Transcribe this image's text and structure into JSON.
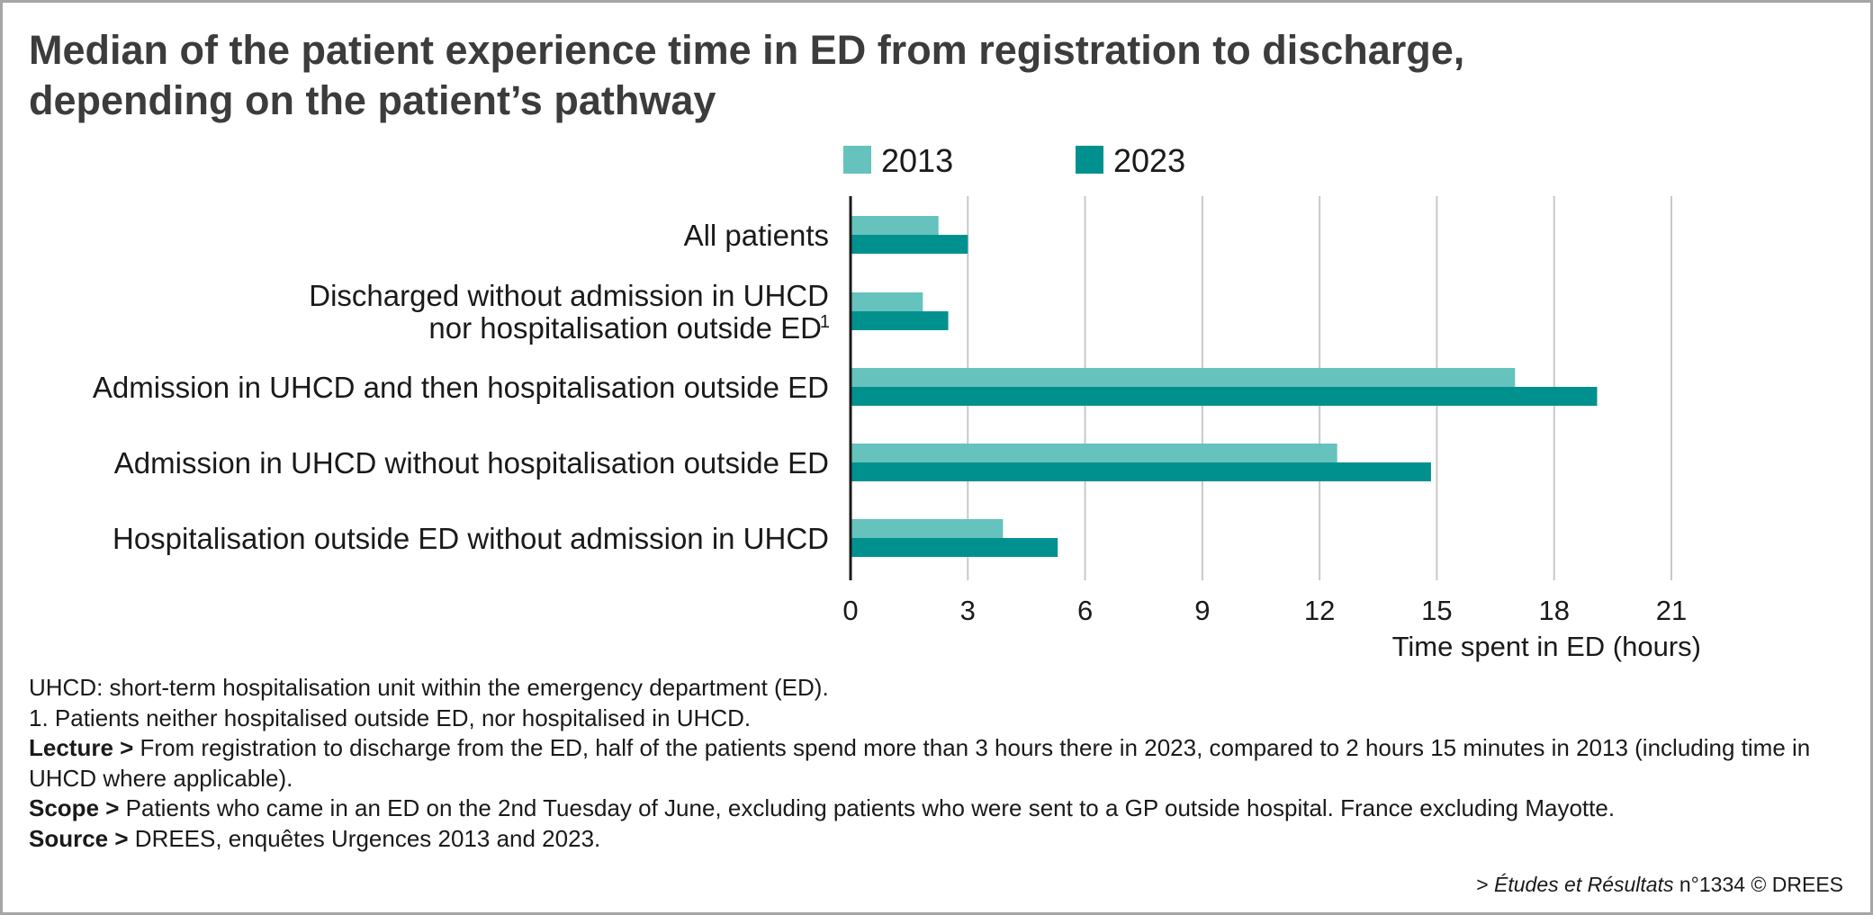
{
  "chart_data": {
    "type": "bar",
    "orientation": "horizontal",
    "title_lines": [
      "Median of the patient experience time in ED from registration to discharge,",
      "depending on the patient’s pathway"
    ],
    "categories": [
      {
        "lines": [
          "All patients"
        ]
      },
      {
        "lines": [
          "Discharged without admission in UHCD",
          "nor hospitalisation outside ED"
        ],
        "sup": "1"
      },
      {
        "lines": [
          "Admission in UHCD and then hospitalisation outside ED"
        ]
      },
      {
        "lines": [
          "Admission in UHCD without hospitalisation outside ED"
        ]
      },
      {
        "lines": [
          "Hospitalisation outside ED without admission in UHCD"
        ]
      }
    ],
    "series": [
      {
        "name": "2013",
        "color": "#66c2bc",
        "values": [
          2.25,
          1.85,
          17.0,
          12.45,
          3.9
        ]
      },
      {
        "name": "2023",
        "color": "#00918f",
        "values": [
          3.0,
          2.5,
          19.1,
          14.85,
          5.3
        ]
      }
    ],
    "xlabel": "Time spent in ED (hours)",
    "ylabel": "",
    "xlim": [
      0,
      21
    ],
    "xticks": [
      "0",
      "3",
      "6",
      "9",
      "12",
      "15",
      "18",
      "21"
    ],
    "grid": true,
    "legend_position": "top"
  },
  "notes": {
    "uhcd": "UHCD: short-term hospitalisation unit within the emergency department (ED).",
    "footnote1": "1. Patients neither hospitalised outside ED, nor hospitalised in UHCD.",
    "lecture_label": "Lecture >",
    "lecture_text": " From registration to discharge from the ED, half of the patients spend more than 3 hours there in 2023, compared to 2 hours 15 minutes in 2013 (including time in UHCD where applicable).",
    "scope_label": "Scope >",
    "scope_text": " Patients who came in an ED on the 2nd Tuesday of June, excluding patients who were sent to a GP outside hospital. France excluding Mayotte.",
    "source_label": "Source >",
    "source_text": " DREES, enquêtes Urgences 2013 and 2023."
  },
  "credit": {
    "prefix": "> ",
    "publication": "Études et Résultats",
    "suffix": " n°1334 © DREES"
  }
}
